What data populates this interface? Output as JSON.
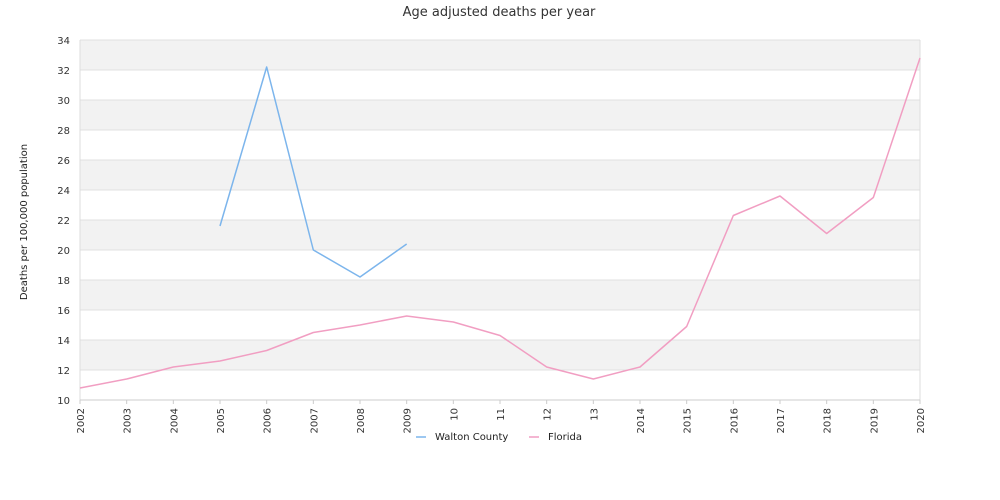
{
  "chart_data": {
    "type": "line",
    "title": "Age adjusted deaths per year",
    "xlabel": "",
    "ylabel": "Deaths per 100,000 population",
    "x": [
      2002,
      2003,
      2004,
      2005,
      2006,
      2007,
      2008,
      2009,
      2010,
      2011,
      2012,
      2013,
      2014,
      2015,
      2016,
      2017,
      2018,
      2019,
      2020
    ],
    "x_tick_labels": [
      "2002",
      "2003",
      "2004",
      "2005",
      "2006",
      "2007",
      "2008",
      "2009",
      "10",
      "11",
      "12",
      "13",
      "2014",
      "2015",
      "2016",
      "2017",
      "2018",
      "2019",
      "2020"
    ],
    "ylim": [
      10,
      34
    ],
    "y_ticks": [
      10,
      12,
      14,
      16,
      18,
      20,
      22,
      24,
      26,
      28,
      30,
      32,
      34
    ],
    "grid": "horizontal bands",
    "legend": "bottom-center",
    "series": [
      {
        "name": "Walton County",
        "color": "#7cb5ec",
        "values": [
          null,
          null,
          null,
          21.6,
          32.2,
          20.0,
          18.2,
          20.4,
          null,
          null,
          null,
          null,
          null,
          null,
          null,
          null,
          null,
          null,
          null
        ]
      },
      {
        "name": "Florida",
        "color": "#f19ec2",
        "values": [
          10.8,
          11.4,
          12.2,
          12.6,
          13.3,
          14.5,
          15.0,
          15.6,
          15.2,
          14.3,
          12.2,
          11.4,
          12.2,
          14.9,
          22.3,
          23.6,
          21.1,
          23.5,
          32.8
        ]
      }
    ]
  }
}
